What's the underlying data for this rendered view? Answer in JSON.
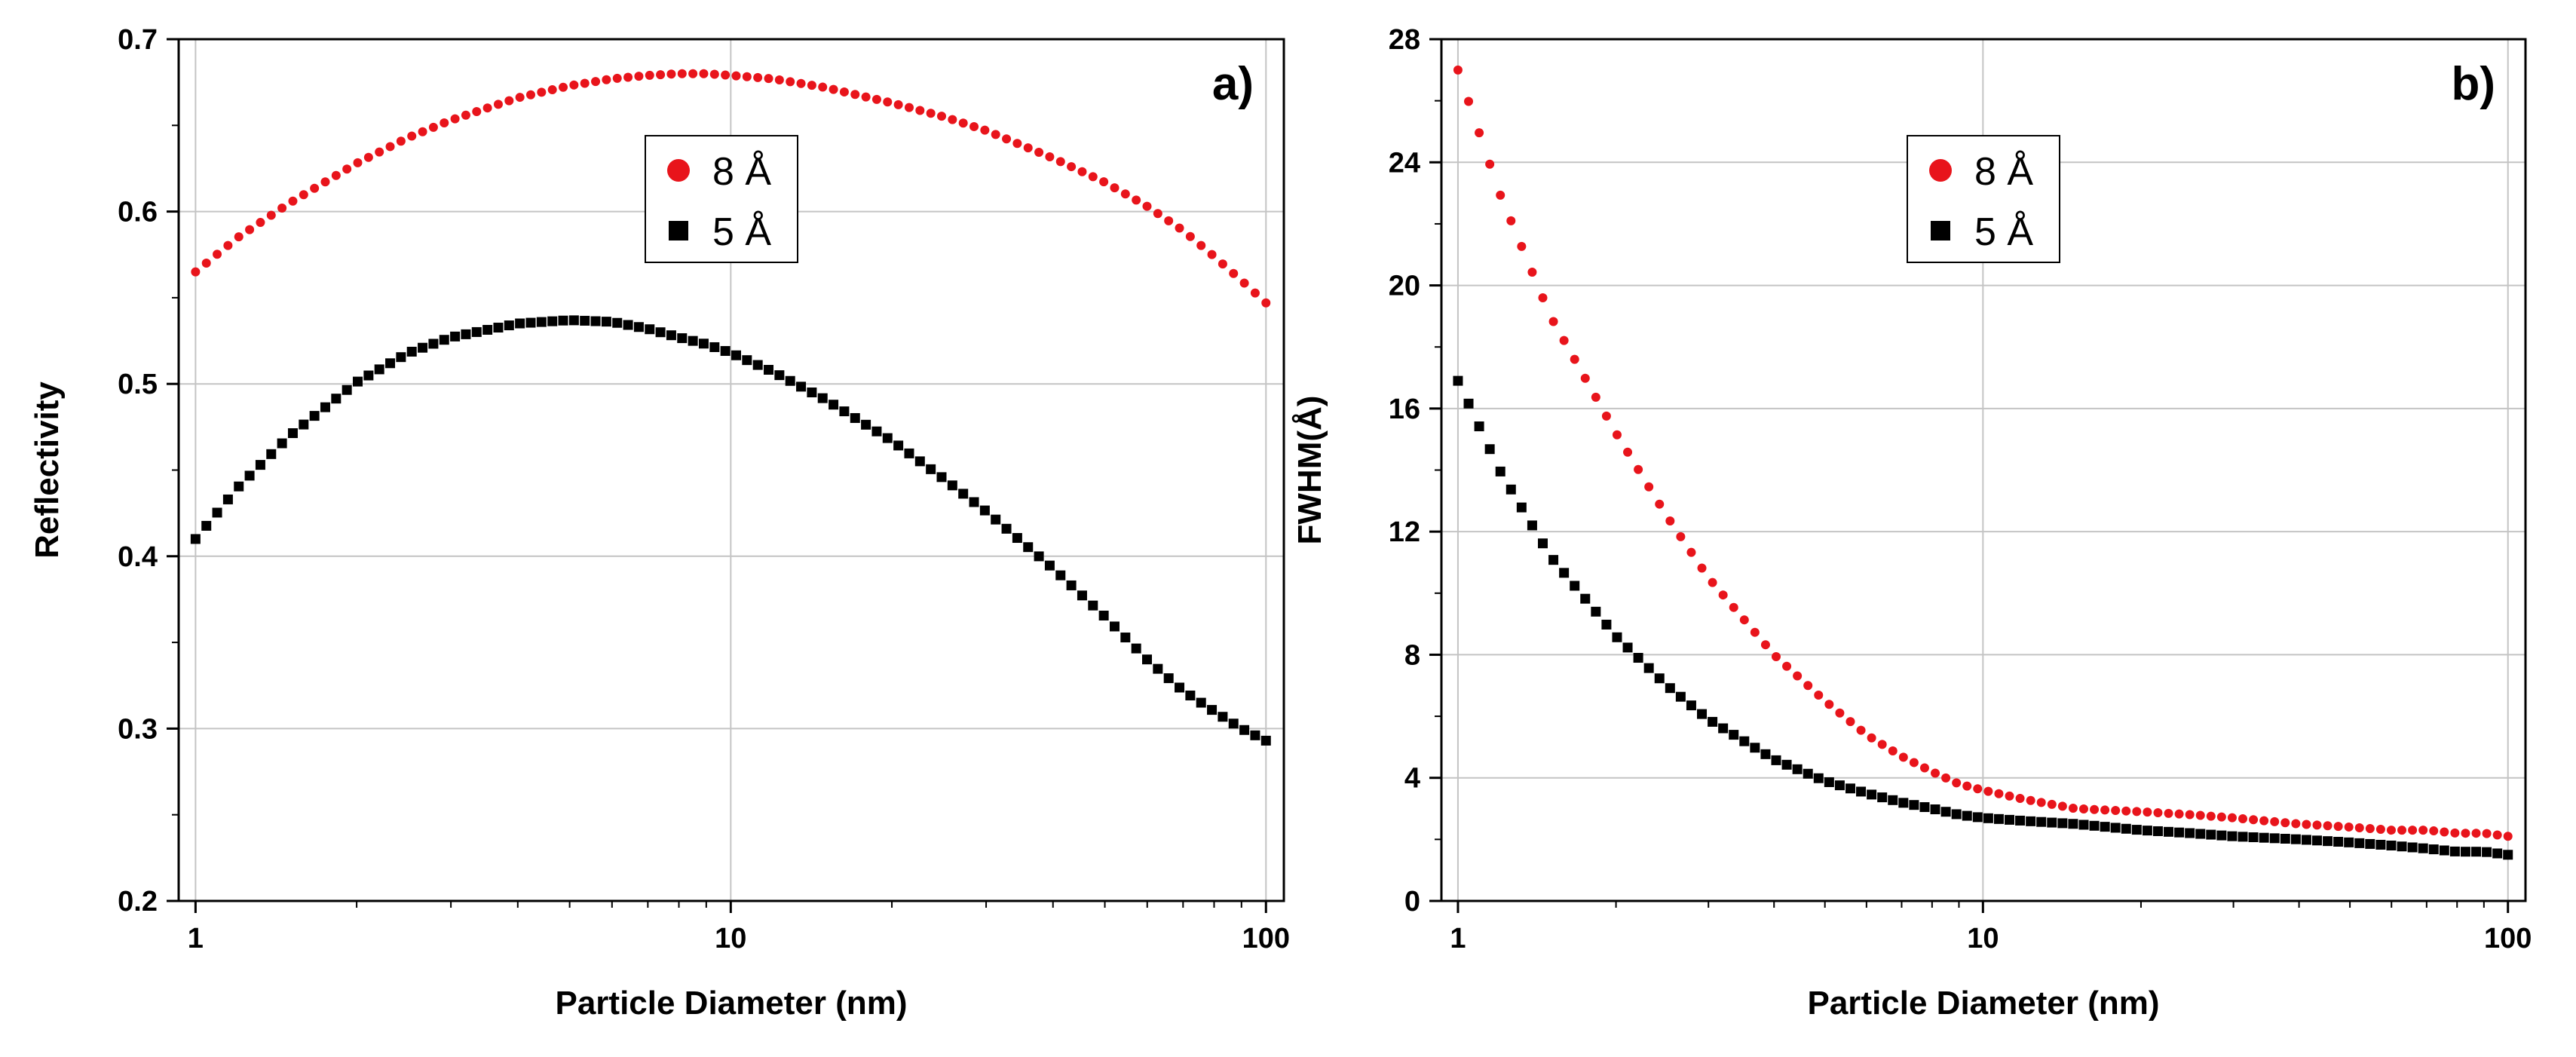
{
  "chart_data": [
    {
      "type": "scatter",
      "panel_label": "a)",
      "xlabel": "Particle Diameter (nm)",
      "ylabel": "Reflectivity",
      "xscale": "log",
      "xlim": [
        0.93,
        108
      ],
      "ylim": [
        0.2,
        0.7
      ],
      "xticks": [
        1,
        10,
        100
      ],
      "xtick_labels": [
        "1",
        "10",
        "100"
      ],
      "yticks": [
        0.2,
        0.3,
        0.4,
        0.5,
        0.6,
        0.7
      ],
      "ytick_labels": [
        "0.2",
        "0.3",
        "0.4",
        "0.5",
        "0.6",
        "0.7"
      ],
      "grid": true,
      "legend_position": "top-center",
      "series": [
        {
          "name": "8 Å",
          "marker": "circle",
          "color": "#e8141b",
          "x": [
            1,
            1.2,
            1.5,
            2,
            2.5,
            3,
            4,
            5,
            6,
            7,
            8,
            9,
            10,
            12,
            15,
            20,
            25,
            30,
            40,
            50,
            60,
            70,
            80,
            90,
            100
          ],
          "y": [
            0.565,
            0.585,
            0.605,
            0.628,
            0.643,
            0.653,
            0.666,
            0.673,
            0.677,
            0.679,
            0.68,
            0.68,
            0.679,
            0.677,
            0.672,
            0.663,
            0.655,
            0.647,
            0.631,
            0.617,
            0.603,
            0.589,
            0.574,
            0.56,
            0.547
          ]
        },
        {
          "name": "5 Å",
          "marker": "square",
          "color": "#000000",
          "x": [
            1,
            1.2,
            1.5,
            2,
            2.5,
            3,
            4,
            5,
            6,
            7,
            8,
            9,
            10,
            12,
            15,
            20,
            25,
            30,
            40,
            50,
            60,
            70,
            80,
            90,
            100
          ],
          "y": [
            0.41,
            0.44,
            0.47,
            0.501,
            0.518,
            0.527,
            0.535,
            0.537,
            0.536,
            0.532,
            0.527,
            0.523,
            0.518,
            0.507,
            0.491,
            0.467,
            0.445,
            0.426,
            0.393,
            0.365,
            0.34,
            0.322,
            0.31,
            0.3,
            0.293
          ]
        }
      ]
    },
    {
      "type": "scatter",
      "panel_label": "b)",
      "xlabel": "Particle Diameter (nm)",
      "ylabel": "FWHM(Å)",
      "xscale": "log",
      "xlim": [
        0.93,
        108
      ],
      "ylim": [
        0,
        28
      ],
      "xticks": [
        1,
        10,
        100
      ],
      "xtick_labels": [
        "1",
        "10",
        "100"
      ],
      "yticks": [
        0,
        4,
        8,
        12,
        16,
        20,
        24,
        28
      ],
      "ytick_labels": [
        "0",
        "4",
        "8",
        "12",
        "16",
        "20",
        "24",
        "28"
      ],
      "grid": true,
      "legend_position": "top-center",
      "series": [
        {
          "name": "8 Å",
          "marker": "circle",
          "color": "#e8141b",
          "x": [
            1,
            1.2,
            1.5,
            2,
            2.5,
            3,
            4,
            5,
            6,
            7,
            8,
            9,
            10,
            12,
            15,
            20,
            25,
            30,
            40,
            50,
            60,
            70,
            80,
            90,
            100
          ],
          "y": [
            27.0,
            23.0,
            19.0,
            15.2,
            12.5,
            10.5,
            8.0,
            6.5,
            5.4,
            4.7,
            4.2,
            3.8,
            3.6,
            3.3,
            3.0,
            2.9,
            2.8,
            2.7,
            2.5,
            2.4,
            2.3,
            2.3,
            2.2,
            2.2,
            2.1
          ]
        },
        {
          "name": "5 Å",
          "marker": "square",
          "color": "#000000",
          "x": [
            1,
            1.2,
            1.5,
            2,
            2.5,
            3,
            4,
            5,
            6,
            7,
            8,
            9,
            10,
            12,
            15,
            20,
            25,
            30,
            40,
            50,
            60,
            70,
            80,
            90,
            100
          ],
          "y": [
            16.9,
            14.0,
            11.2,
            8.6,
            7.0,
            5.9,
            4.6,
            3.9,
            3.5,
            3.2,
            3.0,
            2.8,
            2.7,
            2.6,
            2.5,
            2.3,
            2.2,
            2.1,
            2.0,
            1.9,
            1.8,
            1.7,
            1.6,
            1.6,
            1.5
          ]
        }
      ]
    }
  ]
}
